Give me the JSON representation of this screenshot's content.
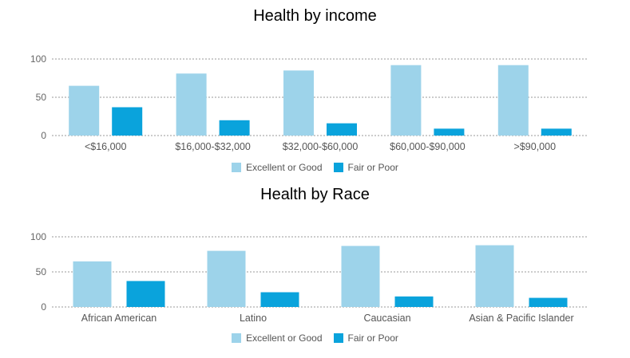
{
  "colors": {
    "good": "#9dd3ea",
    "poor": "#0aa3dc",
    "grid": "#999999"
  },
  "chart_data": [
    {
      "type": "bar",
      "title": "Health by income",
      "categories": [
        "<$16,000",
        "$16,000-$32,000",
        "$32,000-$60,000",
        "$60,000-$90,000",
        ">$90,000"
      ],
      "series": [
        {
          "name": "Excellent or Good",
          "values": [
            65,
            81,
            85,
            92,
            92
          ]
        },
        {
          "name": "Fair or Poor",
          "values": [
            37,
            20,
            16,
            9,
            9
          ]
        }
      ],
      "ylim": [
        0,
        100
      ],
      "yticks": [
        "0",
        "50",
        "100"
      ],
      "grid": true,
      "legend": "bottom"
    },
    {
      "type": "bar",
      "title": "Health by Race",
      "categories": [
        "African American",
        "Latino",
        "Caucasian",
        "Asian & Pacific Islander"
      ],
      "series": [
        {
          "name": "Excellent or Good",
          "values": [
            65,
            80,
            87,
            88
          ]
        },
        {
          "name": "Fair or Poor",
          "values": [
            37,
            21,
            15,
            13
          ]
        }
      ],
      "ylim": [
        0,
        100
      ],
      "yticks": [
        "0",
        "50",
        "100"
      ],
      "grid": true,
      "legend": "bottom"
    }
  ]
}
